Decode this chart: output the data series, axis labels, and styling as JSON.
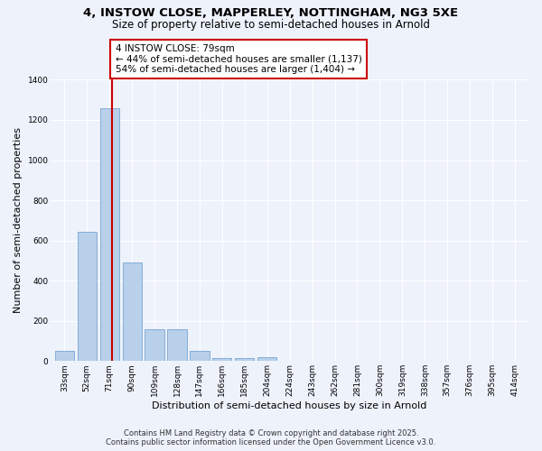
{
  "title_line1": "4, INSTOW CLOSE, MAPPERLEY, NOTTINGHAM, NG3 5XE",
  "title_line2": "Size of property relative to semi-detached houses in Arnold",
  "xlabel": "Distribution of semi-detached houses by size in Arnold",
  "ylabel": "Number of semi-detached properties",
  "bar_categories": [
    "33sqm",
    "52sqm",
    "71sqm",
    "90sqm",
    "109sqm",
    "128sqm",
    "147sqm",
    "166sqm",
    "185sqm",
    "204sqm",
    "224sqm",
    "243sqm",
    "262sqm",
    "281sqm",
    "300sqm",
    "319sqm",
    "338sqm",
    "357sqm",
    "376sqm",
    "395sqm",
    "414sqm"
  ],
  "bar_values": [
    50,
    645,
    1260,
    490,
    160,
    160,
    50,
    15,
    15,
    20,
    0,
    0,
    0,
    0,
    0,
    0,
    0,
    0,
    0,
    0,
    0
  ],
  "bar_color": "#b8d0ea",
  "bar_edge_color": "#6699cc",
  "background_color": "#eef2fb",
  "grid_color": "#ffffff",
  "vline_color": "#cc0000",
  "annotation_text": "4 INSTOW CLOSE: 79sqm\n← 44% of semi-detached houses are smaller (1,137)\n54% of semi-detached houses are larger (1,404) →",
  "annotation_box_color": "#ffffff",
  "annotation_edge_color": "#cc0000",
  "ylim": [
    0,
    1400
  ],
  "yticks": [
    0,
    200,
    400,
    600,
    800,
    1000,
    1200,
    1400
  ],
  "footer_line1": "Contains HM Land Registry data © Crown copyright and database right 2025.",
  "footer_line2": "Contains public sector information licensed under the Open Government Licence v3.0.",
  "title_fontsize": 9.5,
  "subtitle_fontsize": 8.5,
  "tick_fontsize": 6.5,
  "label_fontsize": 8,
  "annotation_fontsize": 7.5,
  "footer_fontsize": 6
}
